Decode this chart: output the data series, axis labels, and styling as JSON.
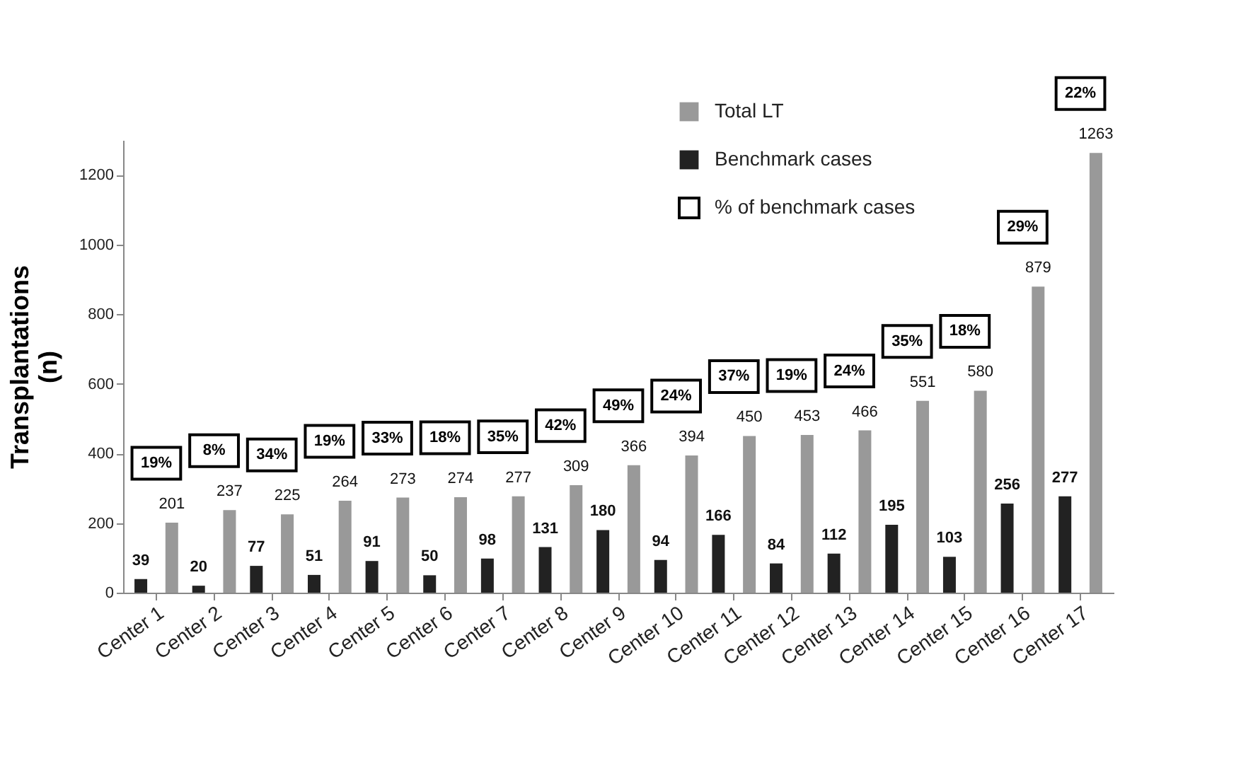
{
  "chart_data": {
    "type": "bar",
    "ylabel": "Transplantations\n(n)",
    "categories": [
      "Center 1",
      "Center 2",
      "Center 3",
      "Center 4",
      "Center 5",
      "Center 6",
      "Center 7",
      "Center 8",
      "Center 9",
      "Center 10",
      "Center 11",
      "Center 12",
      "Center 13",
      "Center 14",
      "Center 15",
      "Center 16",
      "Center 17"
    ],
    "series": [
      {
        "name": "Total LT",
        "color": "#999999",
        "values": [
          201,
          237,
          225,
          264,
          273,
          274,
          277,
          309,
          366,
          394,
          450,
          453,
          466,
          551,
          580,
          879,
          1263
        ]
      },
      {
        "name": "Benchmark cases",
        "color": "#222222",
        "values": [
          39,
          20,
          77,
          51,
          91,
          50,
          98,
          131,
          180,
          94,
          166,
          84,
          112,
          195,
          103,
          256,
          277
        ]
      }
    ],
    "annotations": [
      "% of benchmark cases",
      "19%",
      "8%",
      "34%",
      "19%",
      "33%",
      "18%",
      "35%",
      "42%",
      "49%",
      "24%",
      "37%",
      "19%",
      "24%",
      "35%",
      "18%",
      "29%",
      "22%"
    ],
    "data_labels": true,
    "ylim": [
      0,
      1300
    ],
    "yticks": [
      0,
      200,
      400,
      600,
      800,
      1000,
      1200
    ],
    "grid": false,
    "legend": "top right"
  }
}
